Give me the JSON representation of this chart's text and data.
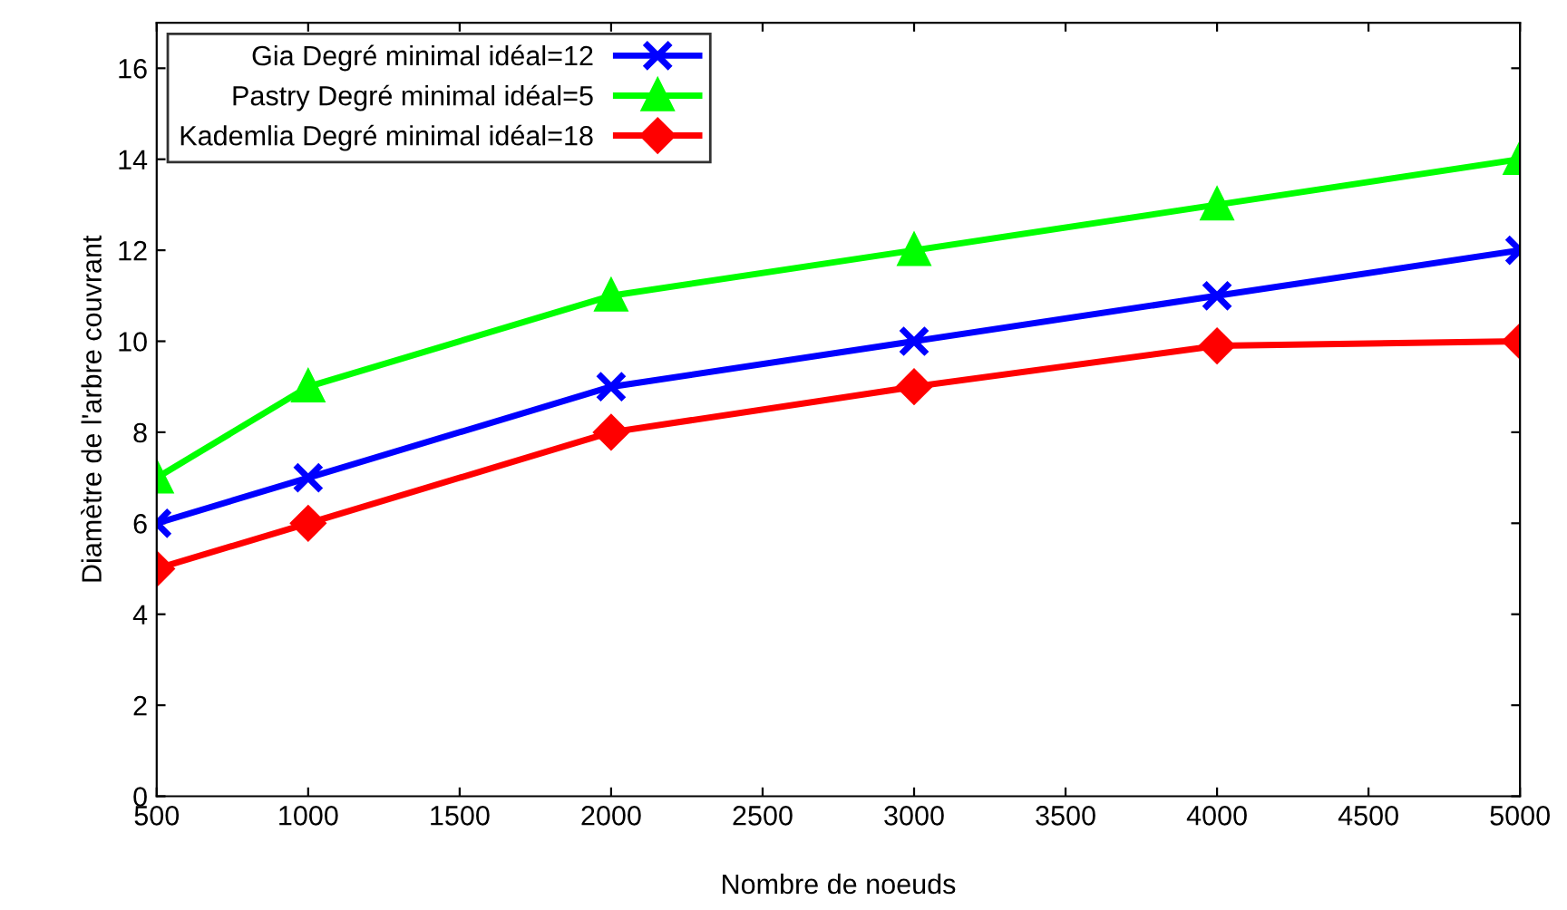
{
  "chart_data": {
    "type": "line",
    "xlabel": "Nombre de noeuds",
    "ylabel": "Diamètre de l'arbre couvrant",
    "x": [
      500,
      1000,
      2000,
      3000,
      4000,
      5000
    ],
    "series": [
      {
        "name": "Gia Degré minimal idéal=12",
        "color": "#0000ff",
        "marker": "cross",
        "values": [
          6,
          7,
          9,
          10,
          11,
          12
        ]
      },
      {
        "name": "Pastry Degré minimal idéal=5",
        "color": "#00ff00",
        "marker": "triangle",
        "values": [
          7,
          9,
          11,
          12,
          13,
          14
        ]
      },
      {
        "name": "Kademlia Degré minimal idéal=18",
        "color": "#ff0000",
        "marker": "diamond",
        "values": [
          5,
          6,
          8,
          9,
          9.9,
          10
        ]
      }
    ],
    "xlim": [
      500,
      5000
    ],
    "ylim": [
      0,
      17
    ],
    "xticks": [
      500,
      1000,
      1500,
      2000,
      2500,
      3000,
      3500,
      4000,
      4500,
      5000
    ],
    "yticks": [
      0,
      2,
      4,
      6,
      8,
      10,
      12,
      14,
      16
    ],
    "grid": false,
    "legend": "top left",
    "line_style": "solid"
  }
}
